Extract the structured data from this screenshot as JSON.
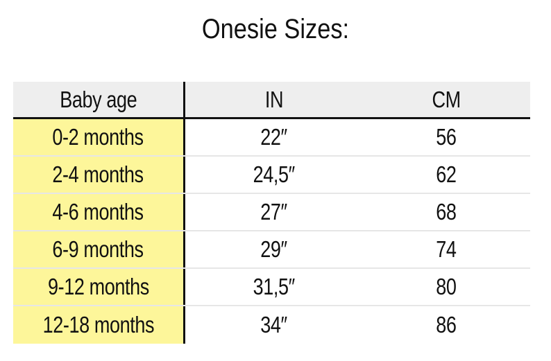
{
  "title": "Onesie Sizes:",
  "table": {
    "headers": [
      "Baby age",
      "IN",
      "CM"
    ],
    "rows": [
      [
        "0-2 months",
        "22″",
        "56"
      ],
      [
        "2-4 months",
        "24,5″",
        "62"
      ],
      [
        "4-6 months",
        "27″",
        "68"
      ],
      [
        "6-9 months",
        "29″",
        "74"
      ],
      [
        "9-12 months",
        "31,5″",
        "80"
      ],
      [
        "12-18 months",
        "34″",
        "86"
      ]
    ]
  },
  "colors": {
    "age_column_highlight": "#fdf69a",
    "header_background": "#eeeeee",
    "rule": "#111111"
  }
}
